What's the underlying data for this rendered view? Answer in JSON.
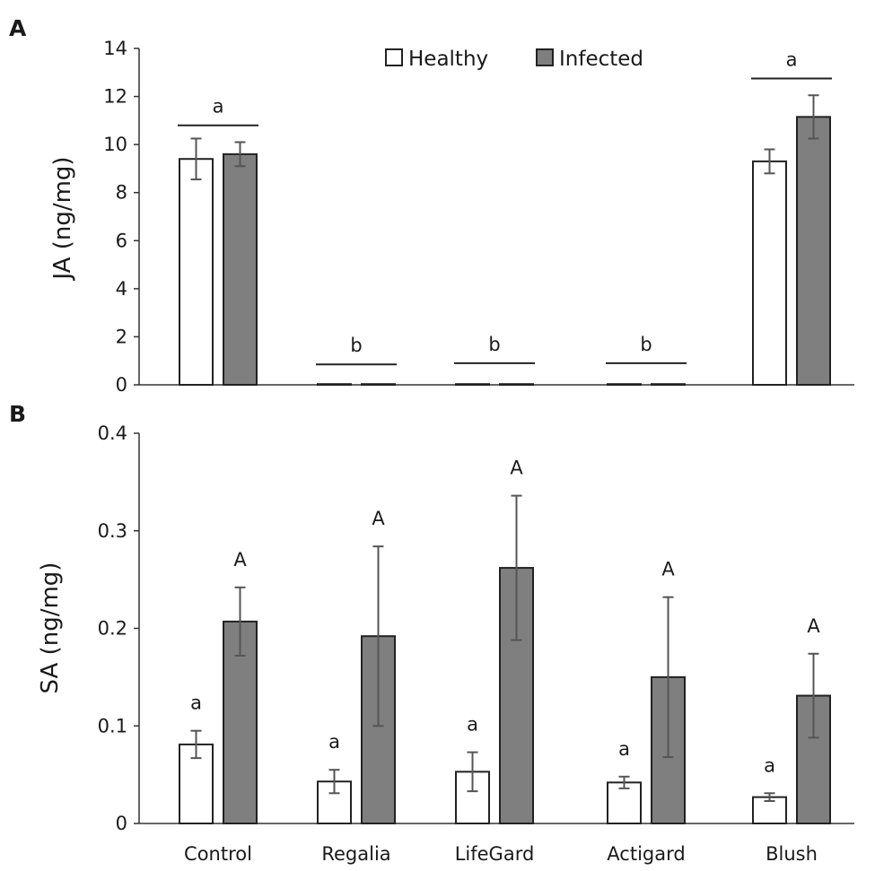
{
  "chart_data": [
    {
      "panel": "A",
      "type": "bar",
      "categories": [
        "Control",
        "Regalia",
        "LifeGard",
        "Actigard",
        "Blush"
      ],
      "ylabel": "JA (ng/mg)",
      "ylim": [
        0,
        14
      ],
      "yticks": [
        "0",
        "2",
        "4",
        "6",
        "8",
        "10",
        "12",
        "14"
      ],
      "series": [
        {
          "name": "Healthy",
          "color": "#ffffff",
          "values": [
            9.4,
            0.03,
            0.03,
            0.03,
            9.3
          ],
          "errors": [
            0.85,
            0,
            0,
            0,
            0.5
          ]
        },
        {
          "name": "Infected",
          "color": "#7f7f7f",
          "values": [
            9.6,
            0.03,
            0.03,
            0.03,
            11.15
          ],
          "errors": [
            0.5,
            0,
            0,
            0,
            0.9
          ]
        }
      ],
      "group_letters": [
        {
          "category": 0,
          "letter": "a",
          "y": 10.8
        },
        {
          "category": 1,
          "letter": "b",
          "y": 0.85
        },
        {
          "category": 2,
          "letter": "b",
          "y": 0.9
        },
        {
          "category": 3,
          "letter": "b",
          "y": 0.9
        },
        {
          "category": 4,
          "letter": "a",
          "y": 12.75
        }
      ],
      "legend": [
        "Healthy",
        "Infected"
      ]
    },
    {
      "panel": "B",
      "type": "bar",
      "categories": [
        "Control",
        "Regalia",
        "LifeGard",
        "Actigard",
        "Blush"
      ],
      "xlabel": "",
      "ylabel": "SA (ng/mg)",
      "ylim": [
        0,
        0.4
      ],
      "yticks": [
        "0",
        "0.1",
        "0.2",
        "0.3",
        "0.4"
      ],
      "series": [
        {
          "name": "Healthy",
          "color": "#ffffff",
          "values": [
            0.081,
            0.043,
            0.053,
            0.042,
            0.027
          ],
          "errors": [
            0.014,
            0.012,
            0.02,
            0.006,
            0.004
          ],
          "letters": [
            "a",
            "a",
            "a",
            "a",
            "a"
          ]
        },
        {
          "name": "Infected",
          "color": "#7f7f7f",
          "values": [
            0.207,
            0.192,
            0.262,
            0.15,
            0.131
          ],
          "errors": [
            0.035,
            0.092,
            0.074,
            0.082,
            0.043
          ],
          "letters": [
            "A",
            "A",
            "A",
            "A",
            "A"
          ]
        }
      ]
    }
  ]
}
